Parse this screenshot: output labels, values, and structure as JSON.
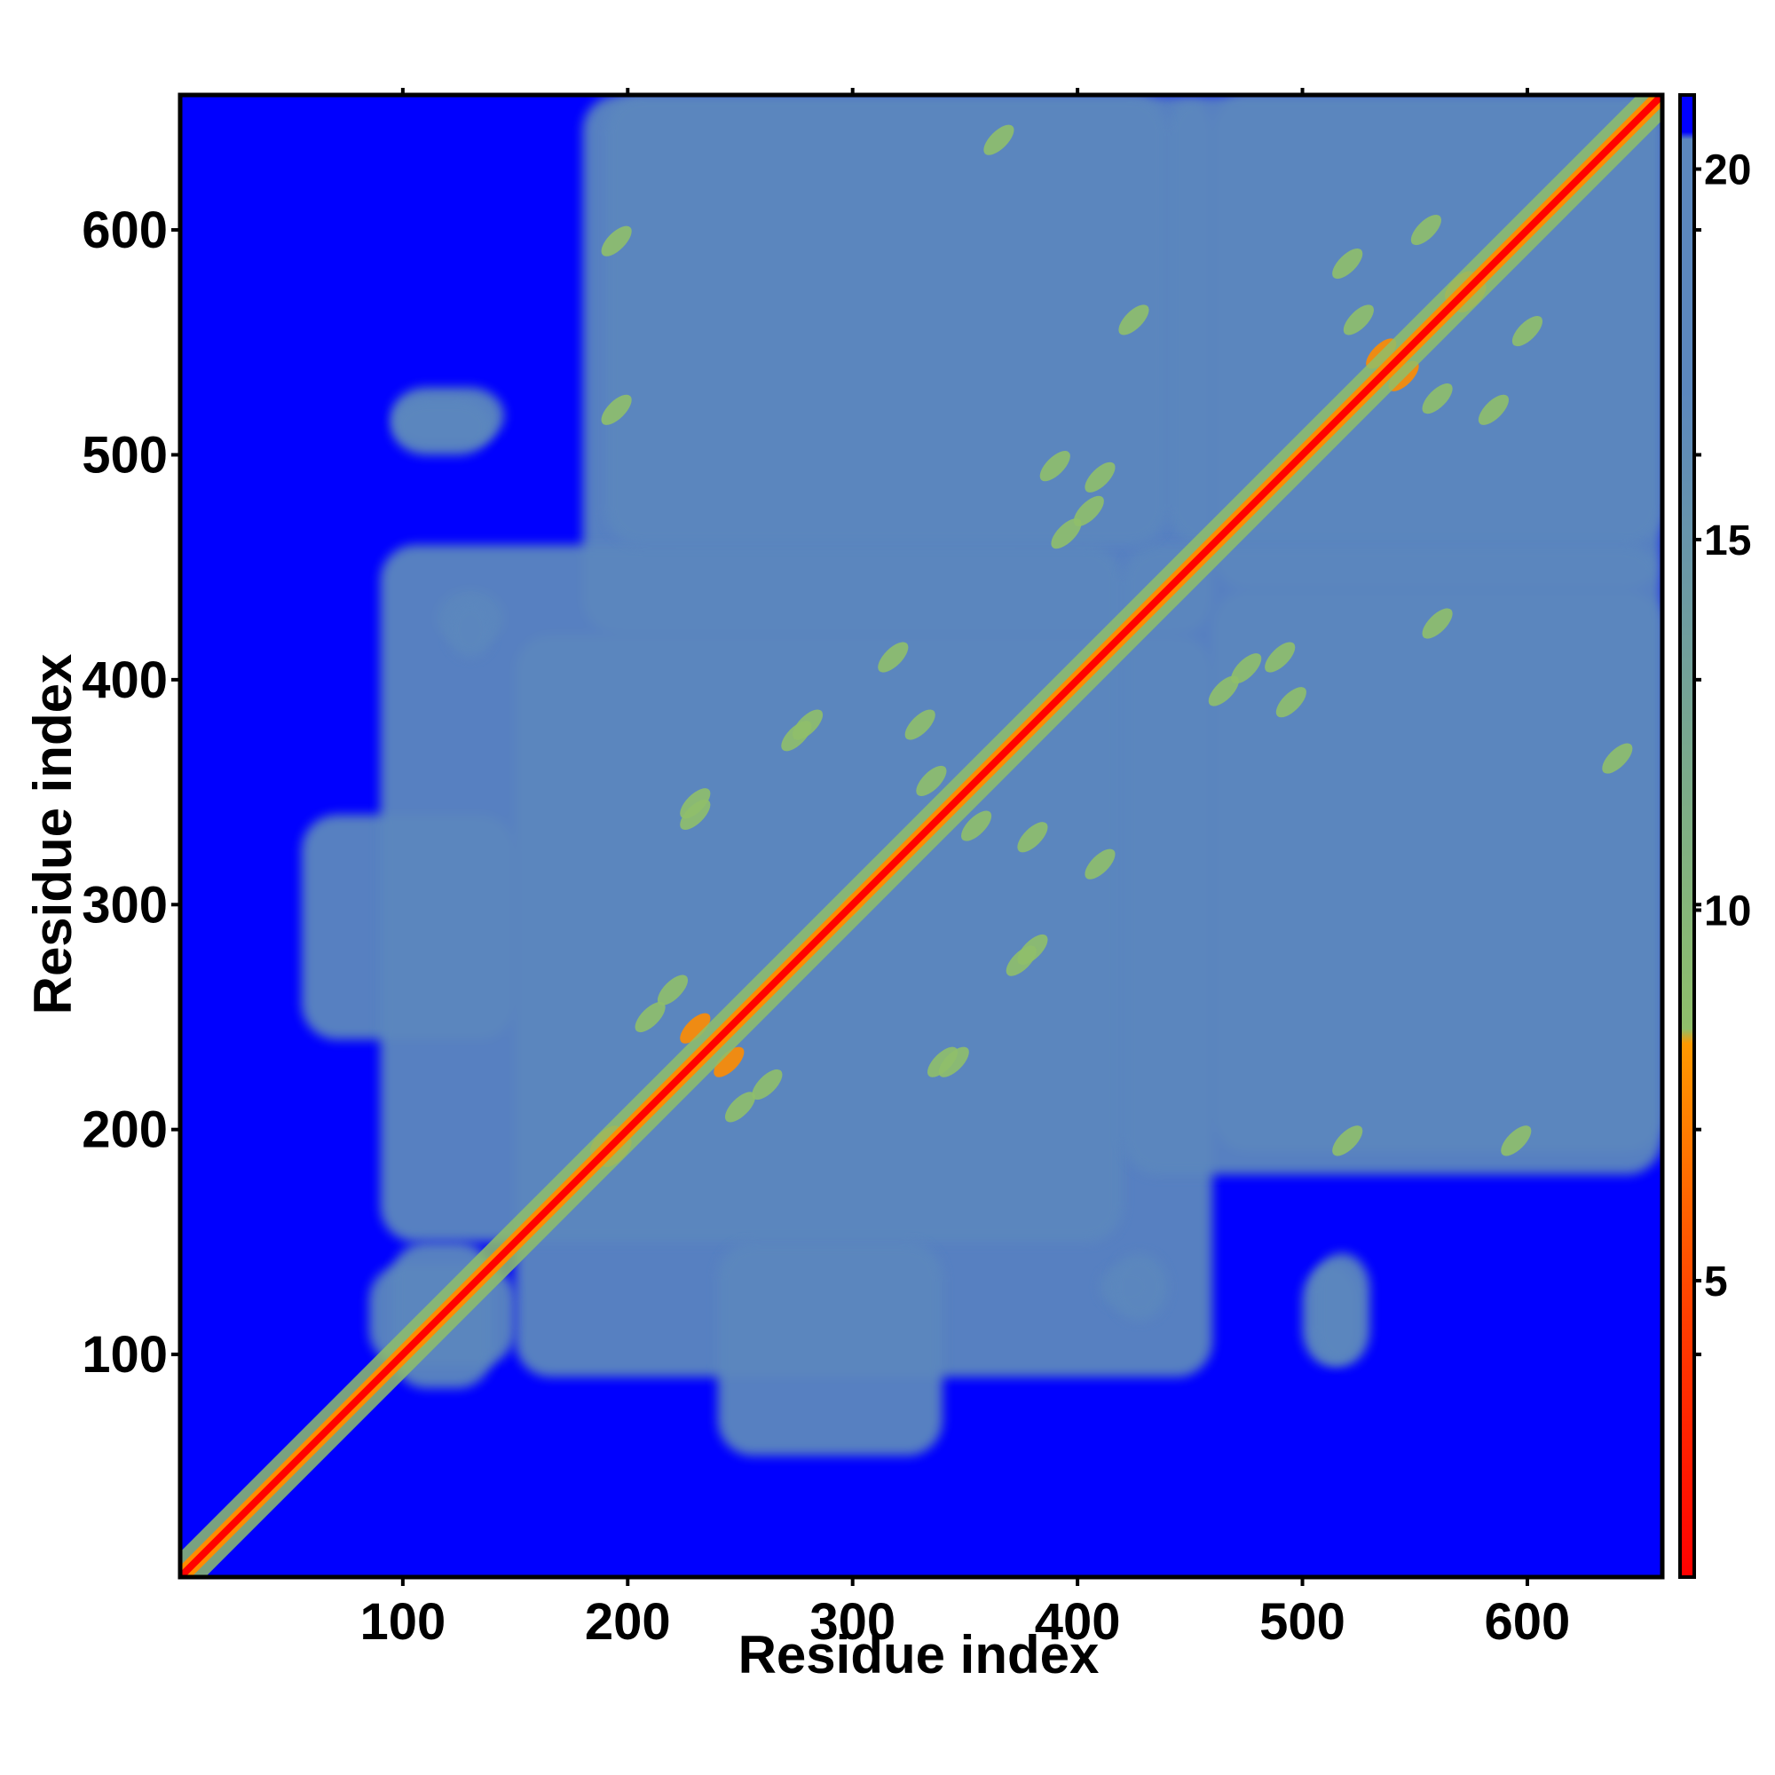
{
  "chart_data": {
    "type": "heatmap",
    "title": "",
    "xlabel": "Residue index",
    "ylabel": "Residue index",
    "xlim": [
      1,
      660
    ],
    "ylim": [
      1,
      660
    ],
    "x_ticks": [
      100,
      200,
      300,
      400,
      500,
      600
    ],
    "y_ticks": [
      100,
      200,
      300,
      400,
      500,
      600
    ],
    "z_description": "pairwise residue distance (contact map)",
    "colorbar": {
      "range": [
        1,
        21
      ],
      "ticks": [
        5,
        10,
        15,
        20
      ],
      "colors": {
        "near": "#ff0000",
        "mid_low": "#ff8c00",
        "mid": "#8fbf6a",
        "high": "#5b87be",
        "far": "#0000ff"
      }
    },
    "diagonal": {
      "from": 1,
      "to": 660
    },
    "dense_regions": [
      {
        "x": [
          150,
          460
        ],
        "y": [
          90,
          420
        ],
        "level": "high"
      },
      {
        "x": [
          460,
          660
        ],
        "y": [
          440,
          660
        ],
        "level": "high"
      },
      {
        "x": [
          180,
          460
        ],
        "y": [
          420,
          660
        ],
        "level": "high"
      },
      {
        "x": [
          460,
          660
        ],
        "y": [
          190,
          440
        ],
        "level": "high"
      },
      {
        "x": [
          85,
          150
        ],
        "y": [
          95,
          140
        ],
        "level": "high"
      },
      {
        "x": [
          95,
          145
        ],
        "y": [
          505,
          530
        ],
        "level": "high"
      },
      {
        "x": [
          115,
          145
        ],
        "y": [
          415,
          440
        ],
        "level": "high"
      },
      {
        "x": [
          500,
          525
        ],
        "y": [
          95,
          140
        ],
        "level": "high"
      },
      {
        "x": [
          410,
          435
        ],
        "y": [
          120,
          140
        ],
        "level": "high"
      },
      {
        "x": [
          55,
          150
        ],
        "y": [
          240,
          340
        ],
        "level": "high"
      }
    ],
    "contacts": [
      {
        "x": 108,
        "y": 108,
        "level": "mid_low"
      },
      {
        "x": 190,
        "y": 195,
        "level": "mid_low"
      },
      {
        "x": 245,
        "y": 230,
        "level": "mid_low"
      },
      {
        "x": 275,
        "y": 375,
        "level": "mid"
      },
      {
        "x": 300,
        "y": 300,
        "level": "mid_low"
      },
      {
        "x": 330,
        "y": 380,
        "level": "mid"
      },
      {
        "x": 355,
        "y": 335,
        "level": "mid"
      },
      {
        "x": 380,
        "y": 280,
        "level": "mid"
      },
      {
        "x": 395,
        "y": 465,
        "level": "mid"
      },
      {
        "x": 410,
        "y": 490,
        "level": "mid"
      },
      {
        "x": 425,
        "y": 560,
        "level": "mid"
      },
      {
        "x": 475,
        "y": 405,
        "level": "mid"
      },
      {
        "x": 495,
        "y": 390,
        "level": "mid"
      },
      {
        "x": 520,
        "y": 585,
        "level": "mid"
      },
      {
        "x": 535,
        "y": 545,
        "level": "mid_low"
      },
      {
        "x": 560,
        "y": 525,
        "level": "mid"
      },
      {
        "x": 570,
        "y": 575,
        "level": "mid_low"
      },
      {
        "x": 600,
        "y": 555,
        "level": "mid"
      },
      {
        "x": 520,
        "y": 195,
        "level": "mid"
      },
      {
        "x": 595,
        "y": 195,
        "level": "mid"
      },
      {
        "x": 640,
        "y": 365,
        "level": "mid"
      },
      {
        "x": 230,
        "y": 340,
        "level": "mid"
      },
      {
        "x": 210,
        "y": 250,
        "level": "mid"
      },
      {
        "x": 262,
        "y": 220,
        "level": "mid"
      },
      {
        "x": 318,
        "y": 410,
        "level": "mid"
      },
      {
        "x": 345,
        "y": 230,
        "level": "mid"
      }
    ]
  }
}
